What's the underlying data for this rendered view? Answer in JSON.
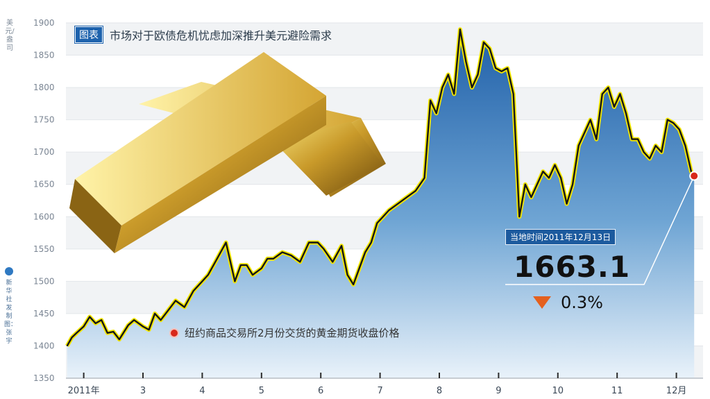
{
  "chart_data": {
    "type": "area",
    "title_tag": "图表",
    "title": "市场对于欧债危机忧虑加深推升美元避险需求",
    "ylabel": "美元/盎司",
    "credit": "新华社发 制图：张宇",
    "ylim": [
      1350,
      1900
    ],
    "yticks": [
      1350,
      1400,
      1450,
      1500,
      1550,
      1600,
      1650,
      1700,
      1750,
      1800,
      1850,
      1900
    ],
    "ytick_labels": [
      "1350",
      "1400",
      "1450",
      "1500",
      "1550",
      "1600",
      "1650",
      "1700",
      "1750",
      "1800",
      "1850",
      "1900"
    ],
    "xlim": [
      1.7,
      12.45
    ],
    "xticks": [
      {
        "x": 2,
        "label": "2011年"
      },
      {
        "x": 3,
        "label": "3"
      },
      {
        "x": 4,
        "label": "4"
      },
      {
        "x": 5,
        "label": "5"
      },
      {
        "x": 6,
        "label": "6"
      },
      {
        "x": 7,
        "label": "7"
      },
      {
        "x": 8,
        "label": "8"
      },
      {
        "x": 9,
        "label": "9"
      },
      {
        "x": 10,
        "label": "10"
      },
      {
        "x": 11,
        "label": "11"
      },
      {
        "x": 12,
        "label": "12月"
      }
    ],
    "series": [
      {
        "name": "纽约商品交易所2月份交货的黄金期货收盘价格",
        "x": [
          1.72,
          1.8,
          1.88,
          2.0,
          2.1,
          2.2,
          2.3,
          2.4,
          2.5,
          2.6,
          2.75,
          2.85,
          3.0,
          3.1,
          3.2,
          3.3,
          3.4,
          3.55,
          3.7,
          3.85,
          4.0,
          4.1,
          4.25,
          4.4,
          4.55,
          4.65,
          4.75,
          4.85,
          5.0,
          5.1,
          5.2,
          5.35,
          5.5,
          5.65,
          5.8,
          5.95,
          6.05,
          6.2,
          6.35,
          6.45,
          6.55,
          6.65,
          6.75,
          6.85,
          6.95,
          7.05,
          7.15,
          7.3,
          7.45,
          7.6,
          7.75,
          7.85,
          7.95,
          8.05,
          8.15,
          8.25,
          8.35,
          8.45,
          8.55,
          8.65,
          8.75,
          8.85,
          8.95,
          9.05,
          9.15,
          9.25,
          9.35,
          9.45,
          9.55,
          9.65,
          9.75,
          9.85,
          9.95,
          10.05,
          10.15,
          10.25,
          10.35,
          10.45,
          10.55,
          10.65,
          10.75,
          10.85,
          10.95,
          11.05,
          11.15,
          11.25,
          11.35,
          11.45,
          11.55,
          11.65,
          11.75,
          11.85,
          11.95,
          12.05,
          12.15,
          12.25,
          12.3
        ],
        "values": [
          1400,
          1413,
          1420,
          1430,
          1445,
          1435,
          1440,
          1420,
          1422,
          1410,
          1432,
          1440,
          1430,
          1425,
          1450,
          1440,
          1452,
          1470,
          1460,
          1485,
          1500,
          1510,
          1535,
          1560,
          1500,
          1525,
          1525,
          1510,
          1520,
          1535,
          1535,
          1545,
          1540,
          1530,
          1560,
          1560,
          1550,
          1530,
          1555,
          1510,
          1495,
          1520,
          1545,
          1560,
          1590,
          1600,
          1610,
          1620,
          1630,
          1640,
          1660,
          1780,
          1760,
          1800,
          1820,
          1790,
          1890,
          1840,
          1800,
          1820,
          1870,
          1860,
          1830,
          1825,
          1830,
          1790,
          1600,
          1650,
          1630,
          1650,
          1670,
          1660,
          1680,
          1660,
          1620,
          1650,
          1710,
          1730,
          1750,
          1720,
          1790,
          1800,
          1770,
          1790,
          1760,
          1720,
          1720,
          1700,
          1690,
          1710,
          1700,
          1750,
          1745,
          1735,
          1710,
          1670,
          1663
        ]
      }
    ],
    "annotation": {
      "date_label": "当地时间2011年12月13日",
      "value": "1663.1",
      "change": "0.3%",
      "direction": "down",
      "point_x": 12.3,
      "point_y": 1663.1
    },
    "colors": {
      "line": "#161616",
      "line_glow": "#f2e600",
      "area_top": "#1f5fa8",
      "area_bottom": "#e9f2fa",
      "accent_red": "#d8281b",
      "arrow": "#e4601e"
    },
    "grid": true
  }
}
